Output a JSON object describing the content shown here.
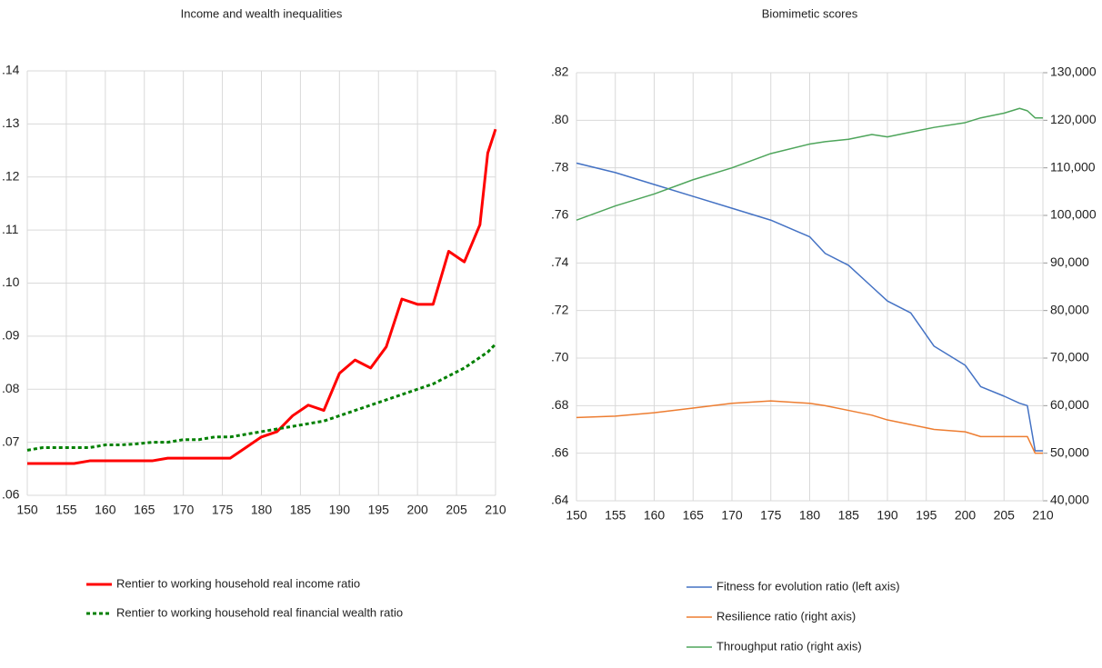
{
  "chart_data": [
    {
      "type": "line",
      "title": "Income and wealth inequalities",
      "x": [
        150,
        152,
        154,
        156,
        158,
        160,
        162,
        164,
        166,
        168,
        170,
        172,
        174,
        176,
        178,
        180,
        182,
        184,
        186,
        188,
        190,
        192,
        194,
        196,
        198,
        200,
        202,
        204,
        206,
        208,
        209,
        210
      ],
      "xlim": [
        150,
        210
      ],
      "xticks": [
        150,
        155,
        160,
        165,
        170,
        175,
        180,
        185,
        190,
        195,
        200,
        205,
        210
      ],
      "ylim": [
        0.06,
        0.14
      ],
      "yticks": [
        {
          "value": 0.06,
          "label": ".06"
        },
        {
          "value": 0.07,
          "label": ".07"
        },
        {
          "value": 0.08,
          "label": ".08"
        },
        {
          "value": 0.09,
          "label": ".09"
        },
        {
          "value": 0.1,
          "label": ".10"
        },
        {
          "value": 0.11,
          "label": ".11"
        },
        {
          "value": 0.12,
          "label": ".12"
        },
        {
          "value": 0.13,
          "label": ".13"
        },
        {
          "value": 0.14,
          "label": ".14"
        }
      ],
      "grid": true,
      "series": [
        {
          "name": "Rentier to working household real income ratio",
          "color": "#ff0000",
          "style": "solid",
          "values": [
            0.066,
            0.066,
            0.066,
            0.066,
            0.0665,
            0.0665,
            0.0665,
            0.0665,
            0.0665,
            0.067,
            0.067,
            0.067,
            0.067,
            0.067,
            0.069,
            0.071,
            0.072,
            0.075,
            0.077,
            0.076,
            0.083,
            0.0855,
            0.084,
            0.088,
            0.097,
            0.096,
            0.096,
            0.106,
            0.104,
            0.111,
            0.1245,
            0.129
          ]
        },
        {
          "name": "Rentier to working household real financial wealth ratio",
          "color": "#008000",
          "style": "dotted",
          "values": [
            0.0685,
            0.069,
            0.069,
            0.069,
            0.069,
            0.0695,
            0.0695,
            0.0697,
            0.07,
            0.07,
            0.0705,
            0.0705,
            0.071,
            0.071,
            0.0715,
            0.072,
            0.0725,
            0.073,
            0.0735,
            0.074,
            0.075,
            0.076,
            0.077,
            0.078,
            0.079,
            0.08,
            0.081,
            0.0825,
            0.084,
            0.086,
            0.087,
            0.0885
          ]
        }
      ]
    },
    {
      "type": "line",
      "title": "Biomimetic scores",
      "x": [
        150,
        155,
        160,
        165,
        170,
        175,
        180,
        182,
        185,
        188,
        190,
        193,
        196,
        200,
        202,
        205,
        207,
        208,
        209,
        210
      ],
      "xlim": [
        150,
        210
      ],
      "xticks": [
        150,
        155,
        160,
        165,
        170,
        175,
        180,
        185,
        190,
        195,
        200,
        205,
        210
      ],
      "ylim": [
        0.64,
        0.82
      ],
      "yticks": [
        {
          "value": 0.64,
          "label": ".64"
        },
        {
          "value": 0.66,
          "label": ".66"
        },
        {
          "value": 0.68,
          "label": ".68"
        },
        {
          "value": 0.7,
          "label": ".70"
        },
        {
          "value": 0.72,
          "label": ".72"
        },
        {
          "value": 0.74,
          "label": ".74"
        },
        {
          "value": 0.76,
          "label": ".76"
        },
        {
          "value": 0.78,
          "label": ".78"
        },
        {
          "value": 0.8,
          "label": ".80"
        },
        {
          "value": 0.82,
          "label": ".82"
        }
      ],
      "y2lim": [
        40000,
        130000
      ],
      "y2ticks": [
        {
          "value": 40000,
          "label": "40,000"
        },
        {
          "value": 50000,
          "label": "50,000"
        },
        {
          "value": 60000,
          "label": "60,000"
        },
        {
          "value": 70000,
          "label": "70,000"
        },
        {
          "value": 80000,
          "label": "80,000"
        },
        {
          "value": 90000,
          "label": "90,000"
        },
        {
          "value": 100000,
          "label": "100,000"
        },
        {
          "value": 110000,
          "label": "110,000"
        },
        {
          "value": 120000,
          "label": "120,000"
        },
        {
          "value": 130000,
          "label": "130,000"
        }
      ],
      "grid": true,
      "series": [
        {
          "name": "Fitness for evolution ratio (left axis)",
          "color": "#4472c4",
          "style": "solid",
          "values": [
            0.782,
            0.778,
            0.773,
            0.768,
            0.763,
            0.758,
            0.751,
            0.744,
            0.739,
            0.73,
            0.724,
            0.719,
            0.705,
            0.697,
            0.688,
            0.684,
            0.681,
            0.68,
            0.661,
            0.661
          ]
        },
        {
          "name": "Resilience ratio (right axis)",
          "color": "#ed7d31",
          "style": "solid",
          "axis": "y2",
          "values": [
            57500,
            57800,
            58500,
            59500,
            60500,
            61000,
            60500,
            60000,
            59000,
            58000,
            57000,
            56000,
            55000,
            54500,
            53500,
            53500,
            53500,
            53500,
            50000,
            50000
          ]
        },
        {
          "name": "Throughput ratio (right axis)",
          "color": "#4ea55b",
          "style": "solid",
          "axis": "y2",
          "values": [
            99000,
            102000,
            104500,
            107500,
            110000,
            113000,
            115000,
            115500,
            116000,
            117000,
            116500,
            117500,
            118500,
            119500,
            120500,
            121500,
            122500,
            122000,
            120500,
            120500
          ]
        }
      ]
    }
  ]
}
